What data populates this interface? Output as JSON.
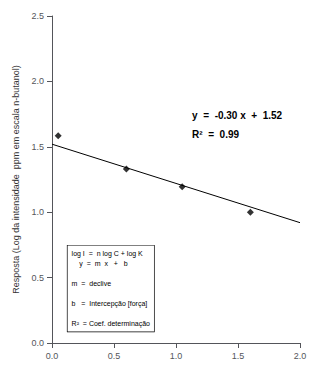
{
  "chart_data": {
    "type": "scatter",
    "ylabel": "Resposta (Log da intensidade  ppm em escala n-butanol)",
    "series": [
      {
        "type": "line",
        "color": "black",
        "x": [
          0.0,
          2.0
        ],
        "values": [
          1.52,
          0.92
        ]
      },
      {
        "type": "scatter",
        "color": "black",
        "marker": "diamond",
        "x": [
          0.05,
          0.6,
          1.05,
          1.6
        ],
        "values": [
          1.585,
          1.33,
          1.195,
          1.0
        ]
      }
    ],
    "xlim": [
      0.0,
      2.0
    ],
    "ylim": [
      0.0,
      2.5
    ],
    "xticks": [
      {
        "value": 0.0,
        "label": "0.0"
      },
      0.5,
      {
        "value": 1.0,
        "label": "1.0"
      },
      1.5,
      {
        "value": 2.0,
        "label": "2.0"
      }
    ],
    "yticks": [
      {
        "value": 0.0,
        "label": "0.0"
      },
      0.5,
      {
        "value": 1.0,
        "label": "1.0"
      },
      1.5,
      {
        "value": 2.0,
        "label": "2.0"
      },
      2.5
    ],
    "annotations": [
      "y  =  -0.30 x  +  1.52",
      "R²  =  0.99"
    ],
    "text_box": [
      "log I  =  n log C + log K",
      "    y  =  m  x   +   b",
      "m  =  declive",
      "b   =  Intercepção [força]",
      "R²  = Coef. determinação"
    ],
    "grid": false
  }
}
